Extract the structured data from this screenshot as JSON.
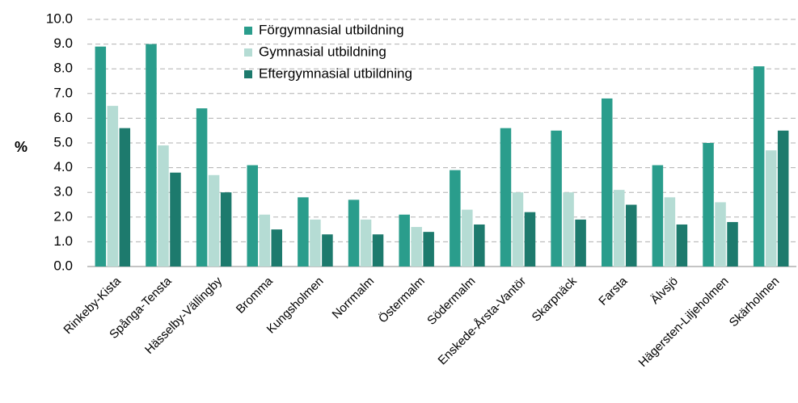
{
  "chart_data": {
    "type": "bar",
    "ylabel": "%",
    "categories": [
      "Rinkeby-Kista",
      "Spånga-Tensta",
      "Hässelby-Vällingby",
      "Bromma",
      "Kungsholmen",
      "Norrmalm",
      "Östermalm",
      "Södermalm",
      "Enskede-Årsta-Vantör",
      "Skarpnäck",
      "Farsta",
      "Älvsjö",
      "Hägersten-Liljeholmen",
      "Skärholmen"
    ],
    "series": [
      {
        "name": "Förgymnasial utbildning",
        "color": "#2a9d8c",
        "values": [
          8.9,
          9.0,
          6.4,
          4.1,
          2.8,
          2.7,
          2.1,
          3.9,
          5.6,
          5.5,
          6.8,
          4.1,
          5.0,
          8.1
        ]
      },
      {
        "name": "Gymnasial utbildning",
        "color": "#b5dcd4",
        "values": [
          6.5,
          4.9,
          3.7,
          2.1,
          1.9,
          1.9,
          1.6,
          2.3,
          3.0,
          3.0,
          3.1,
          2.8,
          2.6,
          4.7
        ]
      },
      {
        "name": "Eftergymnasial utbildning",
        "color": "#1d7a6d",
        "values": [
          5.6,
          3.8,
          3.0,
          1.5,
          1.3,
          1.3,
          1.4,
          1.7,
          2.2,
          1.9,
          2.5,
          1.7,
          1.8,
          5.5
        ]
      }
    ],
    "ylim": [
      0,
      10
    ],
    "yticks": [
      {
        "value": 0,
        "label": "0.0"
      },
      {
        "value": 1,
        "label": "1.0"
      },
      {
        "value": 2,
        "label": "2.0"
      },
      {
        "value": 3,
        "label": "3.0"
      },
      {
        "value": 4,
        "label": "4.0"
      },
      {
        "value": 5,
        "label": "5.0"
      },
      {
        "value": 6,
        "label": "6.0"
      },
      {
        "value": 7,
        "label": "7.0"
      },
      {
        "value": 8,
        "label": "8.0"
      },
      {
        "value": 9,
        "label": "9.0"
      },
      {
        "value": 10,
        "label": "10.0"
      }
    ],
    "grid": true,
    "legend": "top"
  }
}
